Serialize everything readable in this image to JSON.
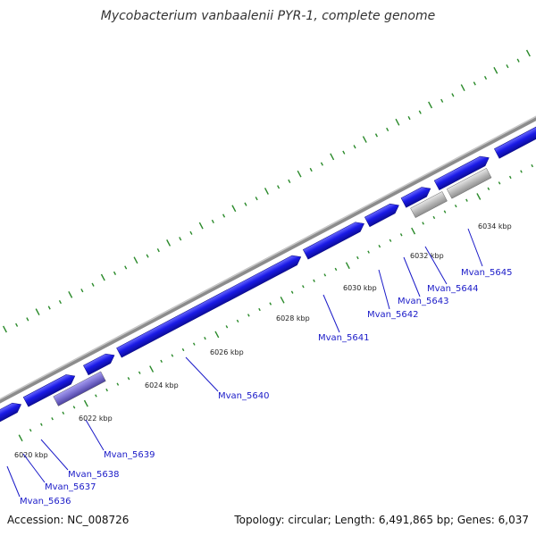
{
  "title": "Mycobacterium vanbaalenii PYR-1, complete genome",
  "accession": "Accession: NC_008726",
  "summary": "Topology: circular; Length: 6,491,865 bp; Genes: 6,037",
  "colors": {
    "backbone": "#8c8c8c",
    "gene_fwd": "#1a1ae6",
    "gene_rev": "#1a1ae6",
    "gene_gray": "#b4b4b4",
    "gene_purple": "#7a6fd0",
    "tick": "#2a8a2a",
    "leader": "#1a1ac8"
  },
  "ticks": [
    {
      "label": "6020 kbp"
    },
    {
      "label": "6022 kbp"
    },
    {
      "label": "6024 kbp"
    },
    {
      "label": "6026 kbp"
    },
    {
      "label": "6028 kbp"
    },
    {
      "label": "6030 kbp"
    },
    {
      "label": "6032 kbp"
    },
    {
      "label": "6034 kbp"
    }
  ],
  "genes": [
    {
      "label": "Mvan_5636"
    },
    {
      "label": "Mvan_5637"
    },
    {
      "label": "Mvan_5638"
    },
    {
      "label": "Mvan_5639"
    },
    {
      "label": "Mvan_5640"
    },
    {
      "label": "Mvan_5641"
    },
    {
      "label": "Mvan_5642"
    },
    {
      "label": "Mvan_5643"
    },
    {
      "label": "Mvan_5644"
    },
    {
      "label": "Mvan_5645"
    }
  ]
}
